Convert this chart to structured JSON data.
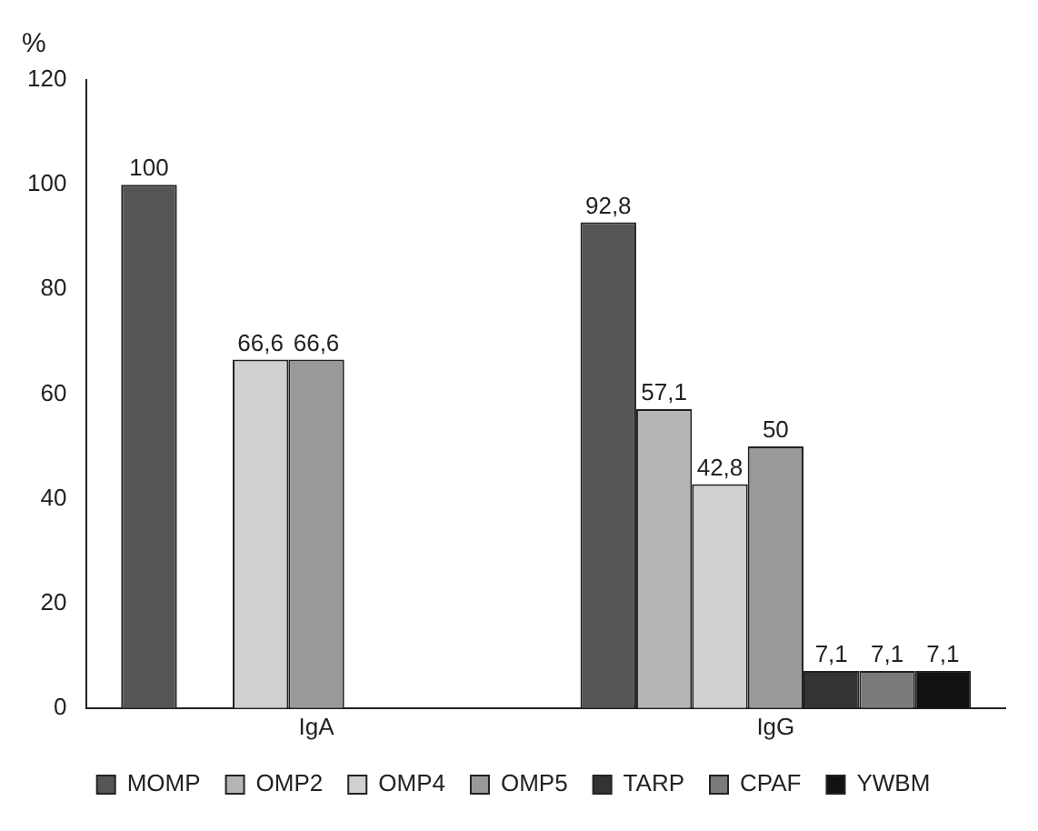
{
  "chart_data": {
    "type": "bar",
    "ylabel": "%",
    "categories": [
      "IgA",
      "IgG"
    ],
    "series": [
      {
        "name": "MOMP",
        "color": "#555555",
        "values": [
          100,
          92.8
        ],
        "value_labels": [
          "100",
          "92,8"
        ]
      },
      {
        "name": "OMP2",
        "color": "#b5b5b5",
        "values": [
          null,
          57.1
        ],
        "value_labels": [
          null,
          "57,1"
        ]
      },
      {
        "name": "OMP4",
        "color": "#d0d0d0",
        "values": [
          66.6,
          42.8
        ],
        "value_labels": [
          "66,6",
          "42,8"
        ]
      },
      {
        "name": "OMP5",
        "color": "#999999",
        "values": [
          66.6,
          50
        ],
        "value_labels": [
          "66,6",
          "50"
        ]
      },
      {
        "name": "TARP",
        "color": "#333333",
        "values": [
          null,
          7.1
        ],
        "value_labels": [
          null,
          "7,1"
        ]
      },
      {
        "name": "CPAF",
        "color": "#7a7a7a",
        "values": [
          null,
          7.1
        ],
        "value_labels": [
          null,
          "7,1"
        ]
      },
      {
        "name": "YWBM",
        "color": "#111111",
        "values": [
          null,
          7.1
        ],
        "value_labels": [
          null,
          "7,1"
        ]
      }
    ],
    "ylim": [
      0,
      120
    ],
    "yticks": [
      0,
      20,
      40,
      60,
      80,
      100,
      120
    ],
    "grid": false,
    "legend": "bottom"
  }
}
